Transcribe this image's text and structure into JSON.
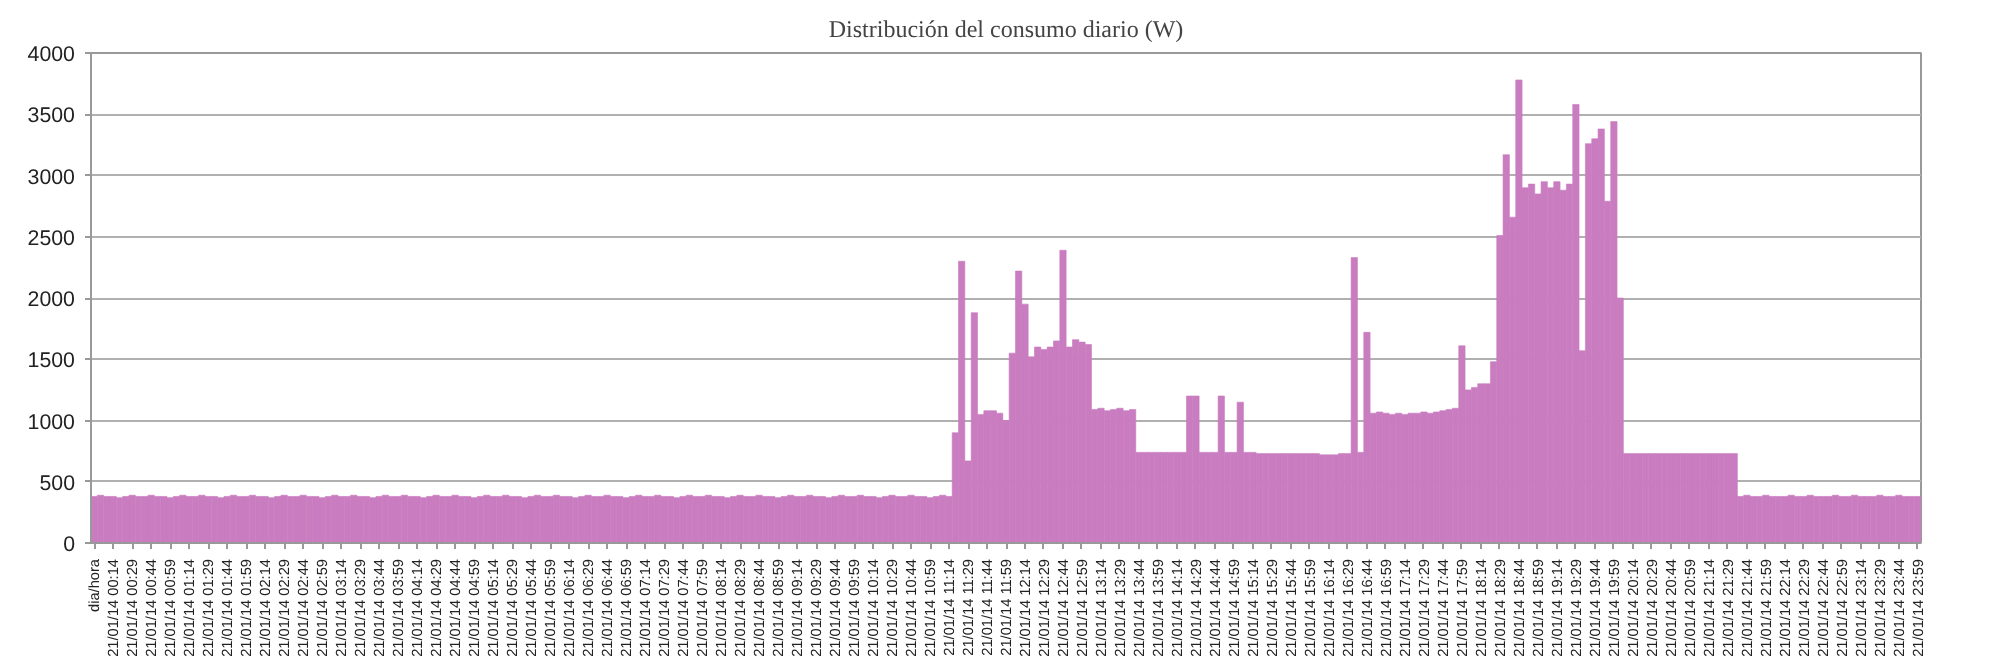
{
  "chart_data": {
    "type": "bar",
    "title": "Distribución del consumo diario (W)",
    "color": "#c97cc0",
    "grid": "y",
    "categories": [
      "dia/hora",
      null,
      null,
      "21/01/14 00:14",
      null,
      null,
      "21/01/14 00:29",
      null,
      null,
      "21/01/14 00:44",
      null,
      null,
      "21/01/14 00:59",
      null,
      null,
      "21/01/14 01:14",
      null,
      null,
      "21/01/14 01:29",
      null,
      null,
      "21/01/14 01:44",
      null,
      null,
      "21/01/14 01:59",
      null,
      null,
      "21/01/14 02:14",
      null,
      null,
      "21/01/14 02:29",
      null,
      null,
      "21/01/14 02:44",
      null,
      null,
      "21/01/14 02:59",
      null,
      null,
      "21/01/14 03:14",
      null,
      null,
      "21/01/14 03:29",
      null,
      null,
      "21/01/14 03:44",
      null,
      null,
      "21/01/14 03:59",
      null,
      null,
      "21/01/14 04:14",
      null,
      null,
      "21/01/14 04:29",
      null,
      null,
      "21/01/14 04:44",
      null,
      null,
      "21/01/14 04:59",
      null,
      null,
      "21/01/14 05:14",
      null,
      null,
      "21/01/14 05:29",
      null,
      null,
      "21/01/14 05:44",
      null,
      null,
      "21/01/14 05:59",
      null,
      null,
      "21/01/14 06:14",
      null,
      null,
      "21/01/14 06:29",
      null,
      null,
      "21/01/14 06:44",
      null,
      null,
      "21/01/14 06:59",
      null,
      null,
      "21/01/14 07:14",
      null,
      null,
      "21/01/14 07:29",
      null,
      null,
      "21/01/14 07:44",
      null,
      null,
      "21/01/14 07:59",
      null,
      null,
      "21/01/14 08:14",
      null,
      null,
      "21/01/14 08:29",
      null,
      null,
      "21/01/14 08:44",
      null,
      null,
      "21/01/14 08:59",
      null,
      null,
      "21/01/14 09:14",
      null,
      null,
      "21/01/14 09:29",
      null,
      null,
      "21/01/14 09:44",
      null,
      null,
      "21/01/14 09:59",
      null,
      null,
      "21/01/14 10:14",
      null,
      null,
      "21/01/14 10:29",
      null,
      null,
      "21/01/14 10:44",
      null,
      null,
      "21/01/14 10:59",
      null,
      null,
      "21/01/14 11:14",
      null,
      null,
      "21/01/14 11:29",
      null,
      null,
      "21/01/14 11:44",
      null,
      null,
      "21/01/14 11:59",
      null,
      null,
      "21/01/14 12:14",
      null,
      null,
      "21/01/14 12:29",
      null,
      null,
      "21/01/14 12:44",
      null,
      null,
      "21/01/14 12:59",
      null,
      null,
      "21/01/14 13:14",
      null,
      null,
      "21/01/14 13:29",
      null,
      null,
      "21/01/14 13:44",
      null,
      null,
      "21/01/14 13:59",
      null,
      null,
      "21/01/14 14:14",
      null,
      null,
      "21/01/14 14:29",
      null,
      null,
      "21/01/14 14:44",
      null,
      null,
      "21/01/14 14:59",
      null,
      null,
      "21/01/14 15:14",
      null,
      null,
      "21/01/14 15:29",
      null,
      null,
      "21/01/14 15:44",
      null,
      null,
      "21/01/14 15:59",
      null,
      null,
      "21/01/14 16:14",
      null,
      null,
      "21/01/14 16:29",
      null,
      null,
      "21/01/14 16:44",
      null,
      null,
      "21/01/14 16:59",
      null,
      null,
      "21/01/14 17:14",
      null,
      null,
      "21/01/14 17:29",
      null,
      null,
      "21/01/14 17:44",
      null,
      null,
      "21/01/14 17:59",
      null,
      null,
      "21/01/14 18:14",
      null,
      null,
      "21/01/14 18:29",
      null,
      null,
      "21/01/14 18:44",
      null,
      null,
      "21/01/14 18:59",
      null,
      null,
      "21/01/14 19:14",
      null,
      null,
      "21/01/14 19:29",
      null,
      null,
      "21/01/14 19:44",
      null,
      null,
      "21/01/14 19:59",
      null,
      null,
      "21/01/14 20:14",
      null,
      null,
      "21/01/14 20:29",
      null,
      null,
      "21/01/14 20:44",
      null,
      null,
      "21/01/14 20:59",
      null,
      null,
      "21/01/14 21:14",
      null,
      null,
      "21/01/14 21:29",
      null,
      null,
      "21/01/14 21:44",
      null,
      null,
      "21/01/14 21:59",
      null,
      null,
      "21/01/14 22:14",
      null,
      null,
      "21/01/14 22:29",
      null,
      null,
      "21/01/14 22:44",
      null,
      null,
      "21/01/14 22:59",
      null,
      null,
      "21/01/14 23:14",
      null,
      null,
      "21/01/14 23:29",
      null,
      null,
      "21/01/14 23:44",
      null,
      null,
      "21/01/14 23:59"
    ],
    "values": [
      380,
      390,
      380,
      380,
      370,
      380,
      390,
      380,
      380,
      390,
      380,
      380,
      370,
      380,
      390,
      380,
      380,
      390,
      380,
      380,
      370,
      380,
      390,
      380,
      380,
      390,
      380,
      380,
      370,
      380,
      390,
      380,
      380,
      390,
      380,
      380,
      370,
      380,
      390,
      380,
      380,
      390,
      380,
      380,
      370,
      380,
      390,
      380,
      380,
      390,
      380,
      380,
      370,
      380,
      390,
      380,
      380,
      390,
      380,
      380,
      370,
      380,
      390,
      380,
      380,
      390,
      380,
      380,
      370,
      380,
      390,
      380,
      380,
      390,
      380,
      380,
      370,
      380,
      390,
      380,
      380,
      390,
      380,
      380,
      370,
      380,
      390,
      380,
      380,
      390,
      380,
      380,
      370,
      380,
      390,
      380,
      380,
      390,
      380,
      380,
      370,
      380,
      390,
      380,
      380,
      390,
      380,
      380,
      370,
      380,
      390,
      380,
      380,
      390,
      380,
      380,
      370,
      380,
      390,
      380,
      380,
      390,
      380,
      380,
      370,
      380,
      390,
      380,
      380,
      390,
      380,
      380,
      370,
      380,
      390,
      380,
      900,
      2300,
      670,
      1880,
      1050,
      1080,
      1080,
      1060,
      1000,
      1550,
      2220,
      1950,
      1520,
      1600,
      1580,
      1600,
      1650,
      2390,
      1600,
      1660,
      1640,
      1620,
      1090,
      1100,
      1080,
      1090,
      1100,
      1080,
      1090,
      740,
      740,
      740,
      740,
      740,
      740,
      740,
      740,
      1200,
      1200,
      740,
      740,
      740,
      1200,
      740,
      740,
      1150,
      740,
      740,
      730,
      730,
      730,
      730,
      730,
      730,
      730,
      730,
      730,
      730,
      720,
      720,
      720,
      730,
      730,
      2330,
      740,
      1720,
      1060,
      1070,
      1060,
      1050,
      1060,
      1050,
      1060,
      1060,
      1070,
      1060,
      1070,
      1080,
      1090,
      1100,
      1610,
      1250,
      1270,
      1300,
      1300,
      1480,
      2510,
      3170,
      2660,
      3780,
      2900,
      2930,
      2850,
      2950,
      2900,
      2950,
      2880,
      2930,
      3580,
      1570,
      3260,
      3300,
      3380,
      2790,
      3440,
      2000,
      730,
      730,
      730,
      730,
      730,
      730,
      730,
      730,
      730,
      730,
      730,
      730,
      730,
      730,
      730,
      730,
      730,
      730,
      380,
      390,
      380,
      380,
      390,
      380,
      380,
      380,
      390,
      380,
      380,
      390,
      380,
      380,
      380,
      390,
      380,
      380,
      390,
      380,
      380,
      380,
      390,
      380,
      380,
      390,
      380,
      380,
      380
    ],
    "ylim": [
      0,
      4000
    ],
    "yticks": [
      0,
      500,
      1000,
      1500,
      2000,
      2500,
      3000,
      3500,
      4000
    ]
  }
}
